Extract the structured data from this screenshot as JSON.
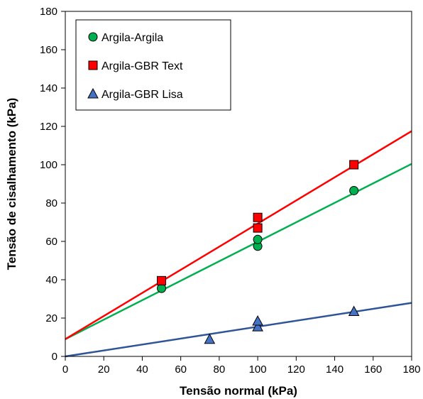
{
  "chart_data": {
    "type": "scatter",
    "title": "",
    "xlabel": "Tensão normal (kPa)",
    "ylabel": "Tensão de cisalhamento (kPa)",
    "xlim": [
      0,
      180
    ],
    "ylim": [
      0,
      180
    ],
    "xticks": [
      "0",
      "20",
      "40",
      "60",
      "80",
      "100",
      "120",
      "140",
      "160",
      "180"
    ],
    "yticks": [
      "0",
      "20",
      "40",
      "60",
      "80",
      "100",
      "120",
      "140",
      "160",
      "180"
    ],
    "grid": false,
    "legend_position": "top-left",
    "series": [
      {
        "name": "Argila-Argila",
        "marker": "circle",
        "color": "#00b050",
        "points": [
          [
            50,
            35.5
          ],
          [
            100,
            57.5
          ],
          [
            100,
            61
          ],
          [
            150,
            86.5
          ]
        ],
        "fit": {
          "intercept": 9,
          "slope": 0.508,
          "color": "#00b050"
        }
      },
      {
        "name": "Argila-GBR Text",
        "marker": "square",
        "color": "#ff0000",
        "points": [
          [
            50,
            39.5
          ],
          [
            100,
            67
          ],
          [
            100,
            72.5
          ],
          [
            150,
            100
          ]
        ],
        "fit": {
          "intercept": 9,
          "slope": 0.603,
          "color": "#ff0000"
        }
      },
      {
        "name": "Argila-GBR Lisa",
        "marker": "triangle",
        "color": "#4472c4",
        "points": [
          [
            75,
            9
          ],
          [
            100,
            15.5
          ],
          [
            100,
            18.5
          ],
          [
            150,
            23.5
          ]
        ],
        "fit": {
          "intercept": 0,
          "slope": 0.155,
          "color": "#2f5597"
        }
      }
    ]
  }
}
